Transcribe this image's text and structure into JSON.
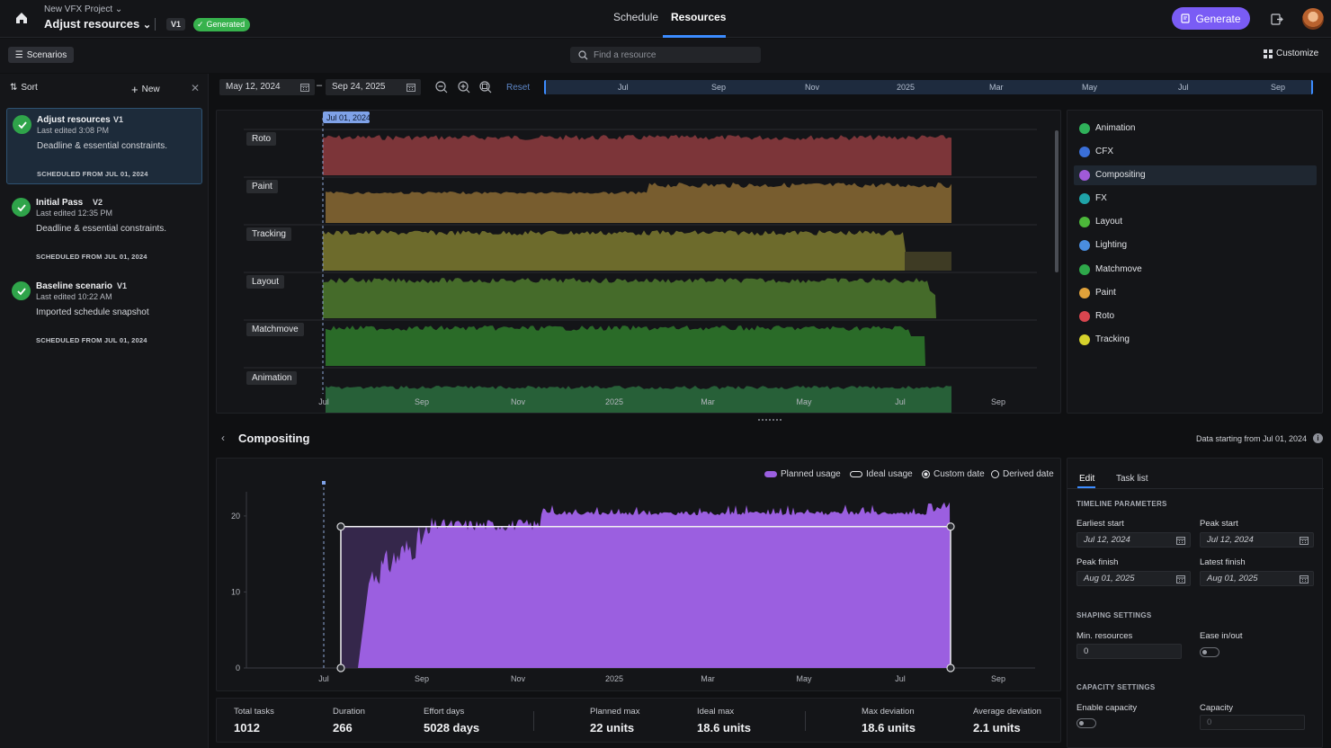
{
  "header": {
    "project_name": "New VFX Project",
    "page_title": "Adjust resources",
    "version": "V1",
    "status": "Generated",
    "tabs": [
      {
        "label": "Schedule"
      },
      {
        "label": "Resources"
      }
    ],
    "generate_label": "Generate"
  },
  "toolbar": {
    "scenarios_label": "Scenarios",
    "search_placeholder": "Find a resource",
    "customize_label": "Customize"
  },
  "scenarios_panel": {
    "sort_label": "Sort",
    "new_label": "New",
    "items": [
      {
        "name": "Adjust resources",
        "version": "V1",
        "edited": "Last edited 3:08 PM",
        "description": "Deadline & essential constraints.",
        "scheduled": "SCHEDULED FROM JUL 01, 2024"
      },
      {
        "name": "Initial Pass",
        "version": "V2",
        "edited": "Last edited 12:35 PM",
        "description": "Deadline & essential constraints.",
        "scheduled": "SCHEDULED FROM JUL 01, 2024"
      },
      {
        "name": "Baseline scenario",
        "version": "V1",
        "edited": "Last edited 10:22 AM",
        "description": "Imported schedule snapshot",
        "scheduled": "SCHEDULED FROM JUL 01, 2024"
      }
    ]
  },
  "range": {
    "start": "May 12, 2024",
    "end": "Sep 24, 2025",
    "reset_label": "Reset",
    "nav_labels": [
      "Jul",
      "Sep",
      "Nov",
      "2025",
      "Mar",
      "May",
      "Jul",
      "Sep"
    ]
  },
  "overview": {
    "marker_label": "Jul 01, 2024",
    "x_labels": [
      "Jul",
      "Sep",
      "Nov",
      "2025",
      "Mar",
      "May",
      "Jul",
      "Sep"
    ],
    "rows": [
      {
        "label": "Roto",
        "color": "#8e3b3f"
      },
      {
        "label": "Paint",
        "color": "#8a6a34"
      },
      {
        "label": "Tracking",
        "color": "#7c7a30"
      },
      {
        "label": "Layout",
        "color": "#4e7a2e"
      },
      {
        "label": "Matchmove",
        "color": "#2e7a2c"
      },
      {
        "label": "Animation",
        "color": "#2a6d3e"
      }
    ]
  },
  "resource_legend": [
    {
      "label": "Animation",
      "color": "#2fb15a"
    },
    {
      "label": "CFX",
      "color": "#3a6fd8"
    },
    {
      "label": "Compositing",
      "color": "#a05ad8"
    },
    {
      "label": "FX",
      "color": "#1fa3a8"
    },
    {
      "label": "Layout",
      "color": "#4cb83a"
    },
    {
      "label": "Lighting",
      "color": "#4a8ee0"
    },
    {
      "label": "Matchmove",
      "color": "#2ea84a"
    },
    {
      "label": "Paint",
      "color": "#e0a23a"
    },
    {
      "label": "Roto",
      "color": "#d8464f"
    },
    {
      "label": "Tracking",
      "color": "#d6d22c"
    }
  ],
  "detail": {
    "title": "Compositing",
    "data_start": "Data starting from Jul 01, 2024",
    "legend": {
      "planned": "Planned usage",
      "ideal": "Ideal usage",
      "custom": "Custom date",
      "derived": "Derived date"
    },
    "accent": "#9b5fe0"
  },
  "chart_data": {
    "type": "area",
    "title": "Compositing",
    "series": [
      {
        "name": "Planned usage",
        "x": [
          "Jul",
          "Aug",
          "Sep",
          "Oct",
          "Nov",
          "Dec",
          "2025",
          "Feb",
          "Mar",
          "Apr",
          "May",
          "Jun",
          "Jul"
        ],
        "values": [
          0,
          14,
          17,
          19,
          20,
          20,
          20.5,
          20.5,
          20.5,
          20.5,
          20.7,
          20.8,
          21
        ]
      },
      {
        "name": "Ideal usage",
        "x": [
          "Jul 12",
          "Aug 01"
        ],
        "values": [
          18.6,
          18.6
        ]
      }
    ],
    "x_labels": [
      "Jul",
      "Sep",
      "Nov",
      "2025",
      "Mar",
      "May",
      "Jul",
      "Sep"
    ],
    "y_ticks": [
      0,
      10,
      20
    ],
    "ylim": [
      0,
      22
    ]
  },
  "params": {
    "tabs": [
      {
        "label": "Edit"
      },
      {
        "label": "Task list"
      }
    ],
    "timeline_section": "TIMELINE PARAMETERS",
    "earliest_start_label": "Earliest start",
    "earliest_start": "Jul 12, 2024",
    "peak_start_label": "Peak start",
    "peak_start": "Jul 12, 2024",
    "peak_finish_label": "Peak finish",
    "peak_finish": "Aug 01, 2025",
    "latest_finish_label": "Latest finish",
    "latest_finish": "Aug 01, 2025",
    "shaping_section": "SHAPING SETTINGS",
    "min_resources_label": "Min. resources",
    "min_resources": "0",
    "ease_label": "Ease in/out",
    "capacity_section": "CAPACITY SETTINGS",
    "enable_capacity_label": "Enable capacity",
    "capacity_label": "Capacity",
    "capacity": "0"
  },
  "stats": [
    {
      "label": "Total tasks",
      "value": "1012"
    },
    {
      "label": "Duration",
      "value": "266"
    },
    {
      "label": "Effort days",
      "value": "5028 days"
    },
    {
      "label": "Planned max",
      "value": "22 units"
    },
    {
      "label": "Ideal max",
      "value": "18.6 units"
    },
    {
      "label": "Max deviation",
      "value": "18.6 units"
    },
    {
      "label": "Average deviation",
      "value": "2.1 units"
    }
  ]
}
